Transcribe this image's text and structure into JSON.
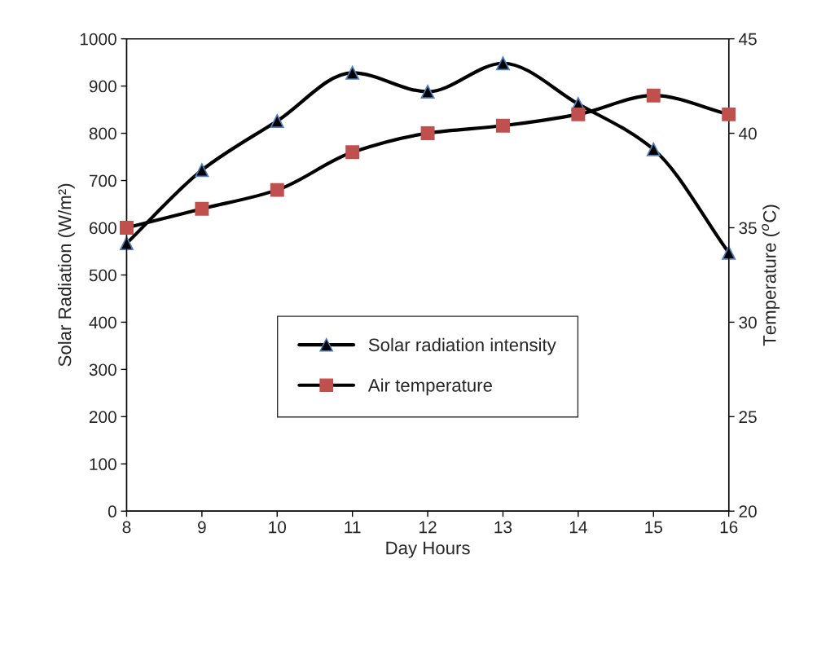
{
  "chart_data": {
    "type": "line",
    "xlabel": "Day Hours",
    "ylabel": "Solar Radiation (W/m²)",
    "y2label": "Temperature ($^{o}$C)",
    "x": [
      8,
      9,
      10,
      11,
      12,
      13,
      14,
      15,
      16
    ],
    "series": [
      {
        "name": "Solar radiation intensity",
        "color": "#000000",
        "marker": "triangle",
        "values": [
          567,
          722,
          826,
          928,
          888,
          948,
          862,
          766,
          547
        ]
      },
      {
        "name": "Air temperature",
        "color": "#000000",
        "marker": "square",
        "axis": "y2",
        "values": [
          35,
          36,
          37,
          39,
          40,
          40.4,
          41,
          42,
          41
        ]
      }
    ],
    "xlim": [
      8,
      16
    ],
    "xticks": [
      8,
      9,
      10,
      11,
      12,
      13,
      14,
      15,
      16
    ],
    "ylim": [
      0,
      1000
    ],
    "yticks": [
      0,
      100,
      200,
      300,
      400,
      500,
      600,
      700,
      800,
      900,
      1000
    ],
    "y2lim": [
      20,
      45
    ],
    "y2ticks": [
      20,
      25,
      30,
      35,
      40,
      45
    ],
    "grid": false,
    "legend": "bottom",
    "line_style": "solid"
  }
}
